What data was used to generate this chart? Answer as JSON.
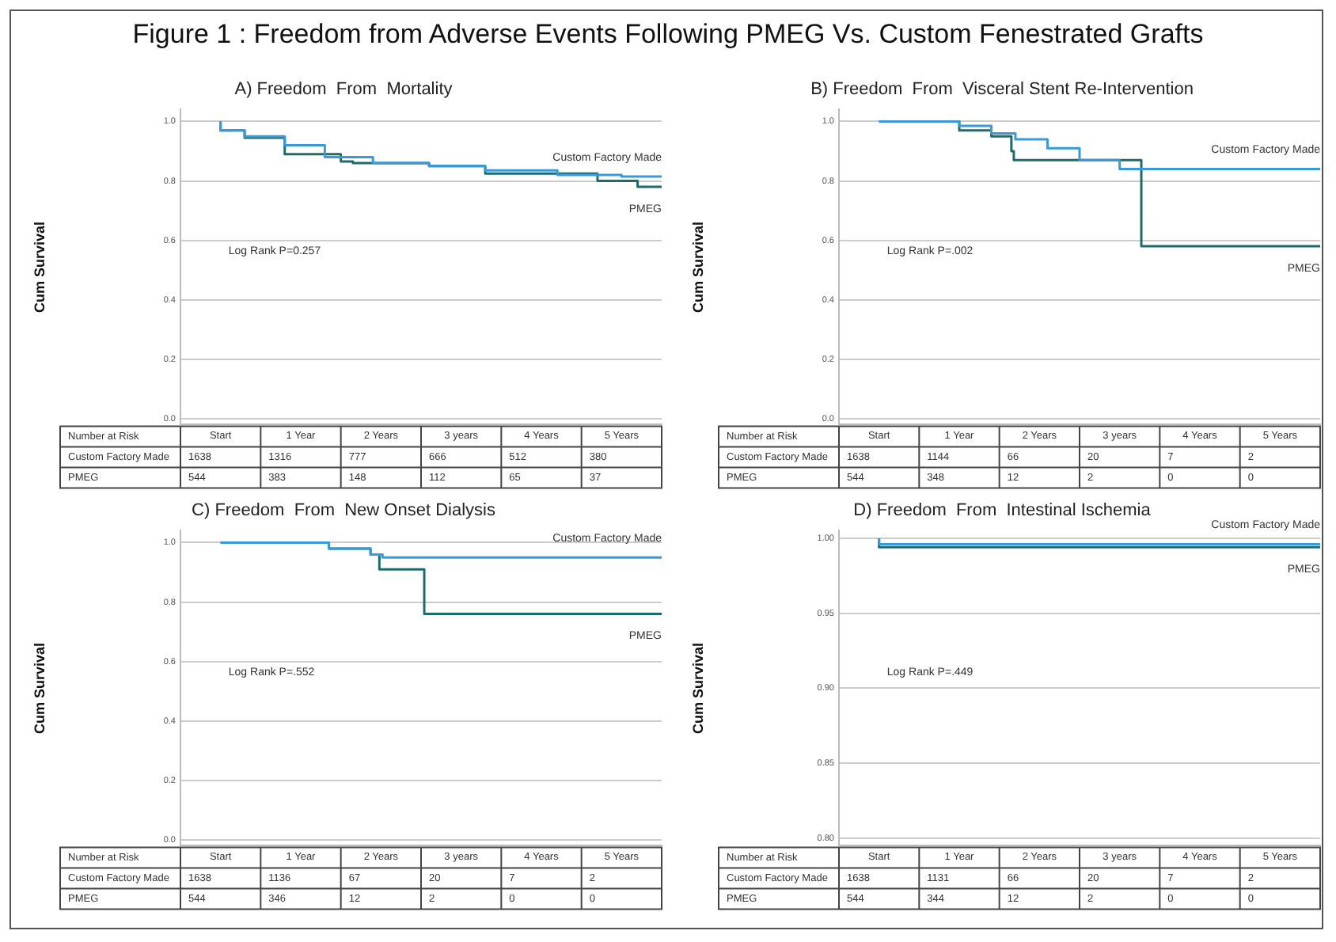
{
  "chart_data": [
    {
      "type": "step",
      "title": "A) Freedom  From  Mortality",
      "ylabel": "Cum Survival",
      "xlim": [
        -0.5,
        5.5
      ],
      "xticks": [
        {
          "value": 0,
          "label": "Start"
        },
        {
          "value": 1,
          "label": "1 Year"
        },
        {
          "value": 2,
          "label": "2 Years"
        },
        {
          "value": 3,
          "label": "3 years"
        },
        {
          "value": 4,
          "label": "4 Years"
        },
        {
          "value": 5,
          "label": "5 Years"
        }
      ],
      "ylim": [
        -0.02,
        1.04
      ],
      "yticks": [
        {
          "value": 0,
          "label": "0.0"
        },
        {
          "value": 0.2,
          "label": "0.2"
        },
        {
          "value": 0.4,
          "label": "0.4"
        },
        {
          "value": 0.6,
          "label": "0.6"
        },
        {
          "value": 0.8,
          "label": "0.8"
        },
        {
          "value": 1,
          "label": "1.0"
        }
      ],
      "grid": "y",
      "legend": false,
      "series": [
        {
          "name": "Custom Factory Made",
          "color": "#3a9ad9",
          "x": [
            0,
            0.3,
            0.8,
            1.3,
            1.9,
            2.6,
            3.3,
            4.2,
            5.0,
            5.5
          ],
          "values": [
            1.0,
            0.97,
            0.95,
            0.92,
            0.88,
            0.86,
            0.85,
            0.835,
            0.82,
            0.815
          ]
        },
        {
          "name": "PMEG",
          "color": "#1f6b6b",
          "x": [
            0,
            0.3,
            0.8,
            1.5,
            1.65,
            2.6,
            3.3,
            4.7,
            5.2,
            5.3,
            5.5
          ],
          "values": [
            1.0,
            0.97,
            0.945,
            0.89,
            0.865,
            0.86,
            0.85,
            0.825,
            0.8,
            0.78,
            0.78
          ]
        }
      ],
      "annotations": [
        "Figure 1 : Freedom from Adverse Events Following PMEG Vs. Custom Fenestrated Grafts",
        "Log Rank P=0.257",
        "Number at Risk",
        "1638",
        "1316",
        "777",
        "666",
        "512",
        "380",
        "544",
        "383",
        "148",
        "112",
        "65",
        "37"
      ]
    },
    {
      "type": "step",
      "title": "B) Freedom  From  Visceral Stent Re-Intervention",
      "ylabel": "Cum Survival",
      "xlim": [
        -0.5,
        5.5
      ],
      "xticks": [
        {
          "value": 0,
          "label": "Start"
        },
        {
          "value": 1,
          "label": "1 Year"
        },
        {
          "value": 2,
          "label": "2 Years"
        },
        {
          "value": 3,
          "label": "3 years"
        },
        {
          "value": 4,
          "label": "4 Years"
        },
        {
          "value": 5,
          "label": "5 Years"
        }
      ],
      "ylim": [
        -0.02,
        1.04
      ],
      "yticks": [
        {
          "value": 0,
          "label": "0.0"
        },
        {
          "value": 0.2,
          "label": "0.2"
        },
        {
          "value": 0.4,
          "label": "0.4"
        },
        {
          "value": 0.6,
          "label": "0.6"
        },
        {
          "value": 0.8,
          "label": "0.8"
        },
        {
          "value": 1,
          "label": "1.0"
        }
      ],
      "grid": "y",
      "legend": false,
      "series": [
        {
          "name": "Custom Factory Made",
          "color": "#3a9ad9",
          "x": [
            0,
            1.0,
            1.4,
            1.7,
            2.1,
            2.5,
            3.0,
            3.06,
            5.5
          ],
          "values": [
            1.0,
            1.0,
            0.985,
            0.96,
            0.94,
            0.91,
            0.87,
            0.84,
            0.84
          ]
        },
        {
          "name": "PMEG",
          "color": "#1f6b6b",
          "x": [
            0,
            1.0,
            1.4,
            1.65,
            1.68,
            1.86,
            3.27,
            3.29,
            5.5
          ],
          "values": [
            1.0,
            1.0,
            0.97,
            0.95,
            0.9,
            0.87,
            0.87,
            0.58,
            0.58
          ]
        }
      ],
      "annotations": [
        "Log Rank P=.002",
        "Number at Risk",
        "1638",
        "1144",
        "66",
        "20",
        "7",
        "2",
        "544",
        "348",
        "12",
        "2",
        "0",
        "0"
      ]
    },
    {
      "type": "step",
      "title": "C) Freedom  From  New Onset Dialysis",
      "ylabel": "Cum Survival",
      "xlim": [
        -0.5,
        5.5
      ],
      "xticks": [
        {
          "value": 0,
          "label": "Start"
        },
        {
          "value": 1,
          "label": "1 Year"
        },
        {
          "value": 2,
          "label": "2 Years"
        },
        {
          "value": 3,
          "label": "3 years"
        },
        {
          "value": 4,
          "label": "4 Years"
        },
        {
          "value": 5,
          "label": "5 Years"
        }
      ],
      "ylim": [
        -0.02,
        1.04
      ],
      "yticks": [
        {
          "value": 0,
          "label": "0.0"
        },
        {
          "value": 0.2,
          "label": "0.2"
        },
        {
          "value": 0.4,
          "label": "0.4"
        },
        {
          "value": 0.6,
          "label": "0.6"
        },
        {
          "value": 0.8,
          "label": "0.8"
        },
        {
          "value": 1,
          "label": "1.0"
        }
      ],
      "grid": "y",
      "legend": false,
      "series": [
        {
          "name": "Custom Factory Made",
          "color": "#3a9ad9",
          "x": [
            0,
            1.35,
            1.87,
            2.02,
            2.21,
            5.5
          ],
          "values": [
            1.0,
            1.0,
            0.98,
            0.96,
            0.95,
            0.95
          ]
        },
        {
          "name": "PMEG",
          "color": "#1f6b6b",
          "x": [
            0,
            1.35,
            1.87,
            1.98,
            2.0,
            2.54,
            2.55,
            5.5
          ],
          "values": [
            1.0,
            1.0,
            0.98,
            0.96,
            0.91,
            0.91,
            0.76,
            0.76
          ]
        }
      ],
      "annotations": [
        "Log Rank P=.552",
        "Number at Risk",
        "1638",
        "1136",
        "67",
        "20",
        "7",
        "2",
        "544",
        "346",
        "12",
        "2",
        "0",
        "0"
      ]
    },
    {
      "type": "step",
      "title": "D) Freedom  From  Intestinal Ischemia",
      "ylabel": "Cum Survival",
      "xlim": [
        -0.5,
        5.5
      ],
      "xticks": [
        {
          "value": 0,
          "label": "Start"
        },
        {
          "value": 1,
          "label": "1 Year"
        },
        {
          "value": 2,
          "label": "2 Years"
        },
        {
          "value": 3,
          "label": "3 years"
        },
        {
          "value": 4,
          "label": "4 Years"
        },
        {
          "value": 5,
          "label": "5 Years"
        }
      ],
      "ylim": [
        0.795,
        1.005
      ],
      "yticks": [
        {
          "value": 0.8,
          "label": "0.80"
        },
        {
          "value": 0.85,
          "label": "0.85"
        },
        {
          "value": 0.9,
          "label": "0.90"
        },
        {
          "value": 0.95,
          "label": "0.95"
        },
        {
          "value": 1,
          "label": "1.00"
        }
      ],
      "grid": "y",
      "legend": false,
      "series": [
        {
          "name": "Custom Factory Made",
          "color": "#3a9ad9",
          "x": [
            0,
            0.05,
            5.5
          ],
          "values": [
            1.0,
            0.996,
            0.996
          ]
        },
        {
          "name": "PMEG",
          "color": "#1f6b6b",
          "x": [
            0,
            0.05,
            5.5
          ],
          "values": [
            1.0,
            0.994,
            0.994
          ]
        }
      ],
      "annotations": [
        "Log Rank P=.449",
        "Number at Risk",
        "1638",
        "1131",
        "66",
        "20",
        "7",
        "2",
        "544",
        "344",
        "12",
        "2",
        "0",
        "0"
      ]
    }
  ]
}
